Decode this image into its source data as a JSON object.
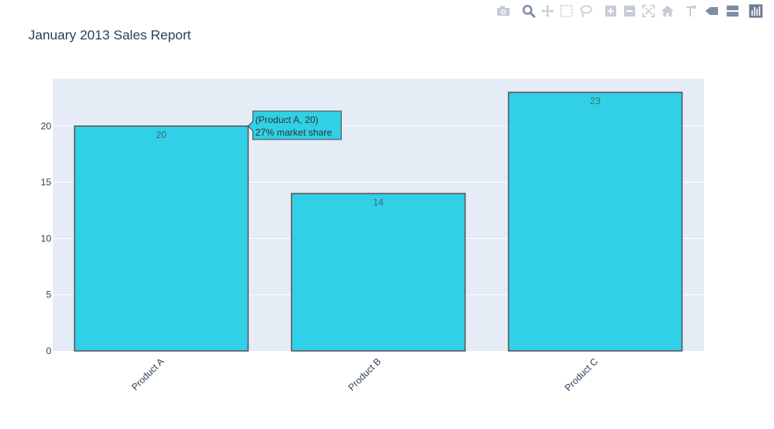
{
  "modebar": {
    "buttons": [
      {
        "name": "camera-icon",
        "title": "Download plot as a png"
      },
      {
        "name": "zoom-icon",
        "title": "Zoom"
      },
      {
        "name": "pan-icon",
        "title": "Pan"
      },
      {
        "name": "box-select-icon",
        "title": "Box Select"
      },
      {
        "name": "lasso-select-icon",
        "title": "Lasso Select"
      },
      {
        "name": "zoom-in-icon",
        "title": "Zoom in"
      },
      {
        "name": "zoom-out-icon",
        "title": "Zoom out"
      },
      {
        "name": "autoscale-icon",
        "title": "Autoscale"
      },
      {
        "name": "home-icon",
        "title": "Reset axes"
      },
      {
        "name": "spike-lines-icon",
        "title": "Toggle Spike Lines"
      },
      {
        "name": "hover-closest-icon",
        "title": "Show closest data on hover"
      },
      {
        "name": "hover-compare-icon",
        "title": "Compare data on hover"
      },
      {
        "name": "plotly-logo-icon",
        "title": "Produced with Plotly"
      }
    ],
    "icon_color": "#c6cdd6",
    "active_color": "#7e8ea3"
  },
  "tooltip": {
    "line1": "(Product A, 20)",
    "line2": "27% market share",
    "category": "Product A",
    "value": 20
  },
  "colors": {
    "bar_fill": "#30d0e6",
    "bar_outline": "#5e4f56",
    "plot_bg": "#e5ecf6",
    "grid": "#ffffff",
    "text": "#2a3f5f",
    "data_label": "#3f6b75"
  },
  "chart_data": {
    "type": "bar",
    "title": "January 2013 Sales Report",
    "categories": [
      "Product A",
      "Product B",
      "Product C"
    ],
    "values": [
      20,
      14,
      23
    ],
    "data_labels": [
      "20",
      "14",
      "23"
    ],
    "yticks": [
      "0",
      "5",
      "10",
      "15",
      "20"
    ],
    "ylim": [
      0,
      24.2
    ],
    "xlabel": "",
    "ylabel": "",
    "grid": true,
    "legend": "none"
  }
}
